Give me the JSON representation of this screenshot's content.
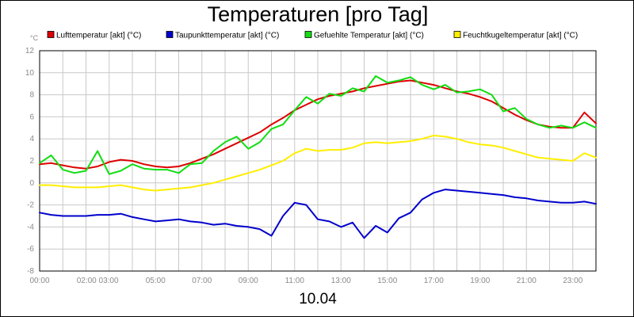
{
  "chart_data": {
    "type": "line",
    "title": "Temperaturen [pro Tag]",
    "xlabel": "10.04",
    "ylabel": "°C",
    "xlim": [
      0,
      24
    ],
    "ylim": [
      -8,
      12
    ],
    "yticks": [
      -8,
      -6,
      -4,
      -2,
      0,
      2,
      4,
      6,
      8,
      10,
      12
    ],
    "xtick_labels": [
      {
        "x": 0,
        "label": "00:00"
      },
      {
        "x": 2.5,
        "label": "02:00 03:00"
      },
      {
        "x": 5,
        "label": "05:00"
      },
      {
        "x": 7,
        "label": "07:00"
      },
      {
        "x": 9,
        "label": "09:00"
      },
      {
        "x": 11,
        "label": "11:00"
      },
      {
        "x": 13,
        "label": "13:00"
      },
      {
        "x": 15,
        "label": "15:00"
      },
      {
        "x": 17,
        "label": "17:00"
      },
      {
        "x": 19,
        "label": "19:00"
      },
      {
        "x": 21,
        "label": "21:00"
      },
      {
        "x": 23,
        "label": "23:00"
      }
    ],
    "grid": true,
    "legend_position": "top",
    "x": [
      0,
      0.5,
      1,
      1.5,
      2,
      2.5,
      3,
      3.5,
      4,
      4.5,
      5,
      5.5,
      6,
      6.5,
      7,
      7.5,
      8,
      8.5,
      9,
      9.5,
      10,
      10.5,
      11,
      11.5,
      12,
      12.5,
      13,
      13.5,
      14,
      14.5,
      15,
      15.5,
      16,
      16.5,
      17,
      17.5,
      18,
      18.5,
      19,
      19.5,
      20,
      20.5,
      21,
      21.5,
      22,
      22.5,
      23,
      23.5,
      24
    ],
    "series": [
      {
        "name": "Lufttemperatur [akt] (°C)",
        "color": "#dd0000",
        "values": [
          1.7,
          1.8,
          1.6,
          1.4,
          1.3,
          1.5,
          1.9,
          2.1,
          2.0,
          1.7,
          1.5,
          1.4,
          1.5,
          1.8,
          2.2,
          2.6,
          3.1,
          3.6,
          4.1,
          4.6,
          5.3,
          5.9,
          6.6,
          7.1,
          7.6,
          7.9,
          8.1,
          8.3,
          8.6,
          8.8,
          9.0,
          9.2,
          9.3,
          9.1,
          8.9,
          8.6,
          8.3,
          8.1,
          7.8,
          7.4,
          6.8,
          6.2,
          5.7,
          5.3,
          5.1,
          5.0,
          5.0,
          6.4,
          5.4
        ]
      },
      {
        "name": "Taupunkttemperatur [akt] (°C)",
        "color": "#0000cc",
        "values": [
          -2.7,
          -2.9,
          -3.0,
          -3.0,
          -3.0,
          -2.9,
          -2.9,
          -2.8,
          -3.1,
          -3.3,
          -3.5,
          -3.4,
          -3.3,
          -3.5,
          -3.6,
          -3.8,
          -3.7,
          -3.9,
          -4.0,
          -4.2,
          -4.8,
          -3.0,
          -1.8,
          -2.0,
          -3.3,
          -3.5,
          -4.0,
          -3.6,
          -5.0,
          -3.9,
          -4.5,
          -3.2,
          -2.7,
          -1.5,
          -0.9,
          -0.6,
          -0.7,
          -0.8,
          -0.9,
          -1.0,
          -1.1,
          -1.3,
          -1.4,
          -1.6,
          -1.7,
          -1.8,
          -1.8,
          -1.7,
          -1.9
        ]
      },
      {
        "name": "Gefuehlte Temperatur [akt] (°C)",
        "color": "#11dd11",
        "values": [
          1.8,
          2.5,
          1.2,
          0.9,
          1.1,
          2.9,
          0.8,
          1.1,
          1.7,
          1.3,
          1.2,
          1.2,
          0.9,
          1.7,
          1.8,
          2.9,
          3.7,
          4.2,
          3.1,
          3.7,
          4.9,
          5.3,
          6.6,
          7.8,
          7.2,
          8.1,
          7.9,
          8.6,
          8.3,
          9.7,
          9.1,
          9.3,
          9.6,
          8.9,
          8.5,
          8.9,
          8.2,
          8.3,
          8.5,
          8.0,
          6.5,
          6.8,
          5.8,
          5.3,
          5.0,
          5.2,
          5.0,
          5.5,
          5.0
        ]
      },
      {
        "name": "Feuchtkugeltemperatur [akt] (°C)",
        "color": "#ffee00",
        "values": [
          -0.2,
          -0.2,
          -0.3,
          -0.4,
          -0.4,
          -0.4,
          -0.3,
          -0.2,
          -0.4,
          -0.6,
          -0.7,
          -0.6,
          -0.5,
          -0.4,
          -0.2,
          0.0,
          0.3,
          0.6,
          0.9,
          1.2,
          1.6,
          2.0,
          2.7,
          3.1,
          2.9,
          3.0,
          3.0,
          3.2,
          3.6,
          3.7,
          3.6,
          3.7,
          3.8,
          4.0,
          4.3,
          4.2,
          4.0,
          3.7,
          3.5,
          3.4,
          3.2,
          2.9,
          2.6,
          2.3,
          2.2,
          2.1,
          2.0,
          2.7,
          2.3
        ]
      }
    ]
  }
}
